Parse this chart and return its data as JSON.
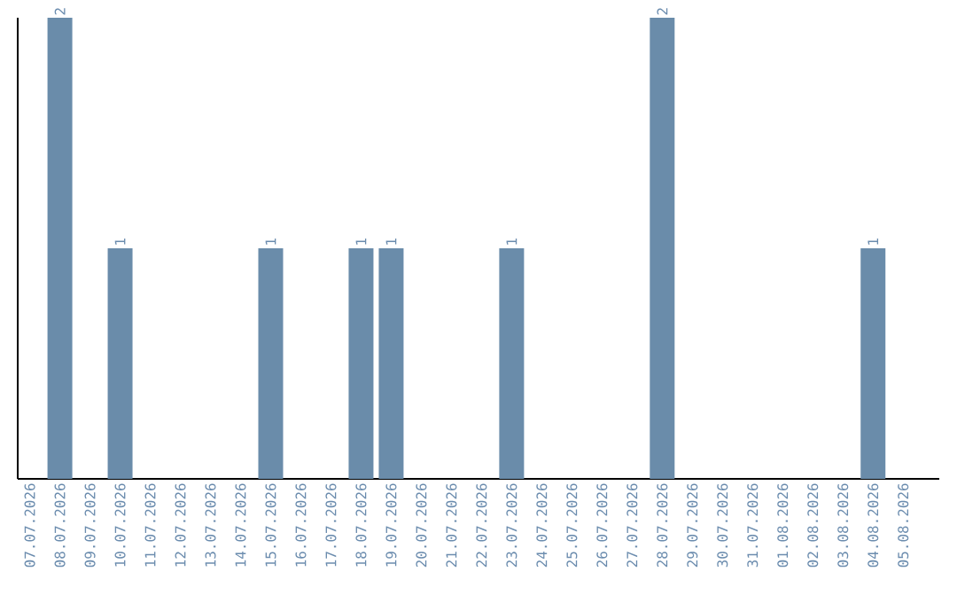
{
  "chart_data": {
    "type": "bar",
    "categories": [
      "07.07.2026",
      "08.07.2026",
      "09.07.2026",
      "10.07.2026",
      "11.07.2026",
      "12.07.2026",
      "13.07.2026",
      "14.07.2026",
      "15.07.2026",
      "16.07.2026",
      "17.07.2026",
      "18.07.2026",
      "19.07.2026",
      "20.07.2026",
      "21.07.2026",
      "22.07.2026",
      "23.07.2026",
      "24.07.2026",
      "25.07.2026",
      "26.07.2026",
      "27.07.2026",
      "28.07.2026",
      "29.07.2026",
      "30.07.2026",
      "31.07.2026",
      "01.08.2026",
      "02.08.2026",
      "03.08.2026",
      "04.08.2026",
      "05.08.2026"
    ],
    "values": [
      0,
      2,
      0,
      1,
      0,
      0,
      0,
      0,
      1,
      0,
      0,
      1,
      1,
      0,
      0,
      0,
      1,
      0,
      0,
      0,
      0,
      2,
      0,
      0,
      0,
      0,
      0,
      0,
      1,
      0
    ],
    "value_labels": [
      null,
      "2",
      null,
      "1",
      null,
      null,
      null,
      null,
      "1",
      null,
      null,
      "1",
      "1",
      null,
      null,
      null,
      "1",
      null,
      null,
      null,
      null,
      "2",
      null,
      null,
      null,
      null,
      null,
      null,
      "1",
      null
    ],
    "color": "#6a8caa"
  }
}
